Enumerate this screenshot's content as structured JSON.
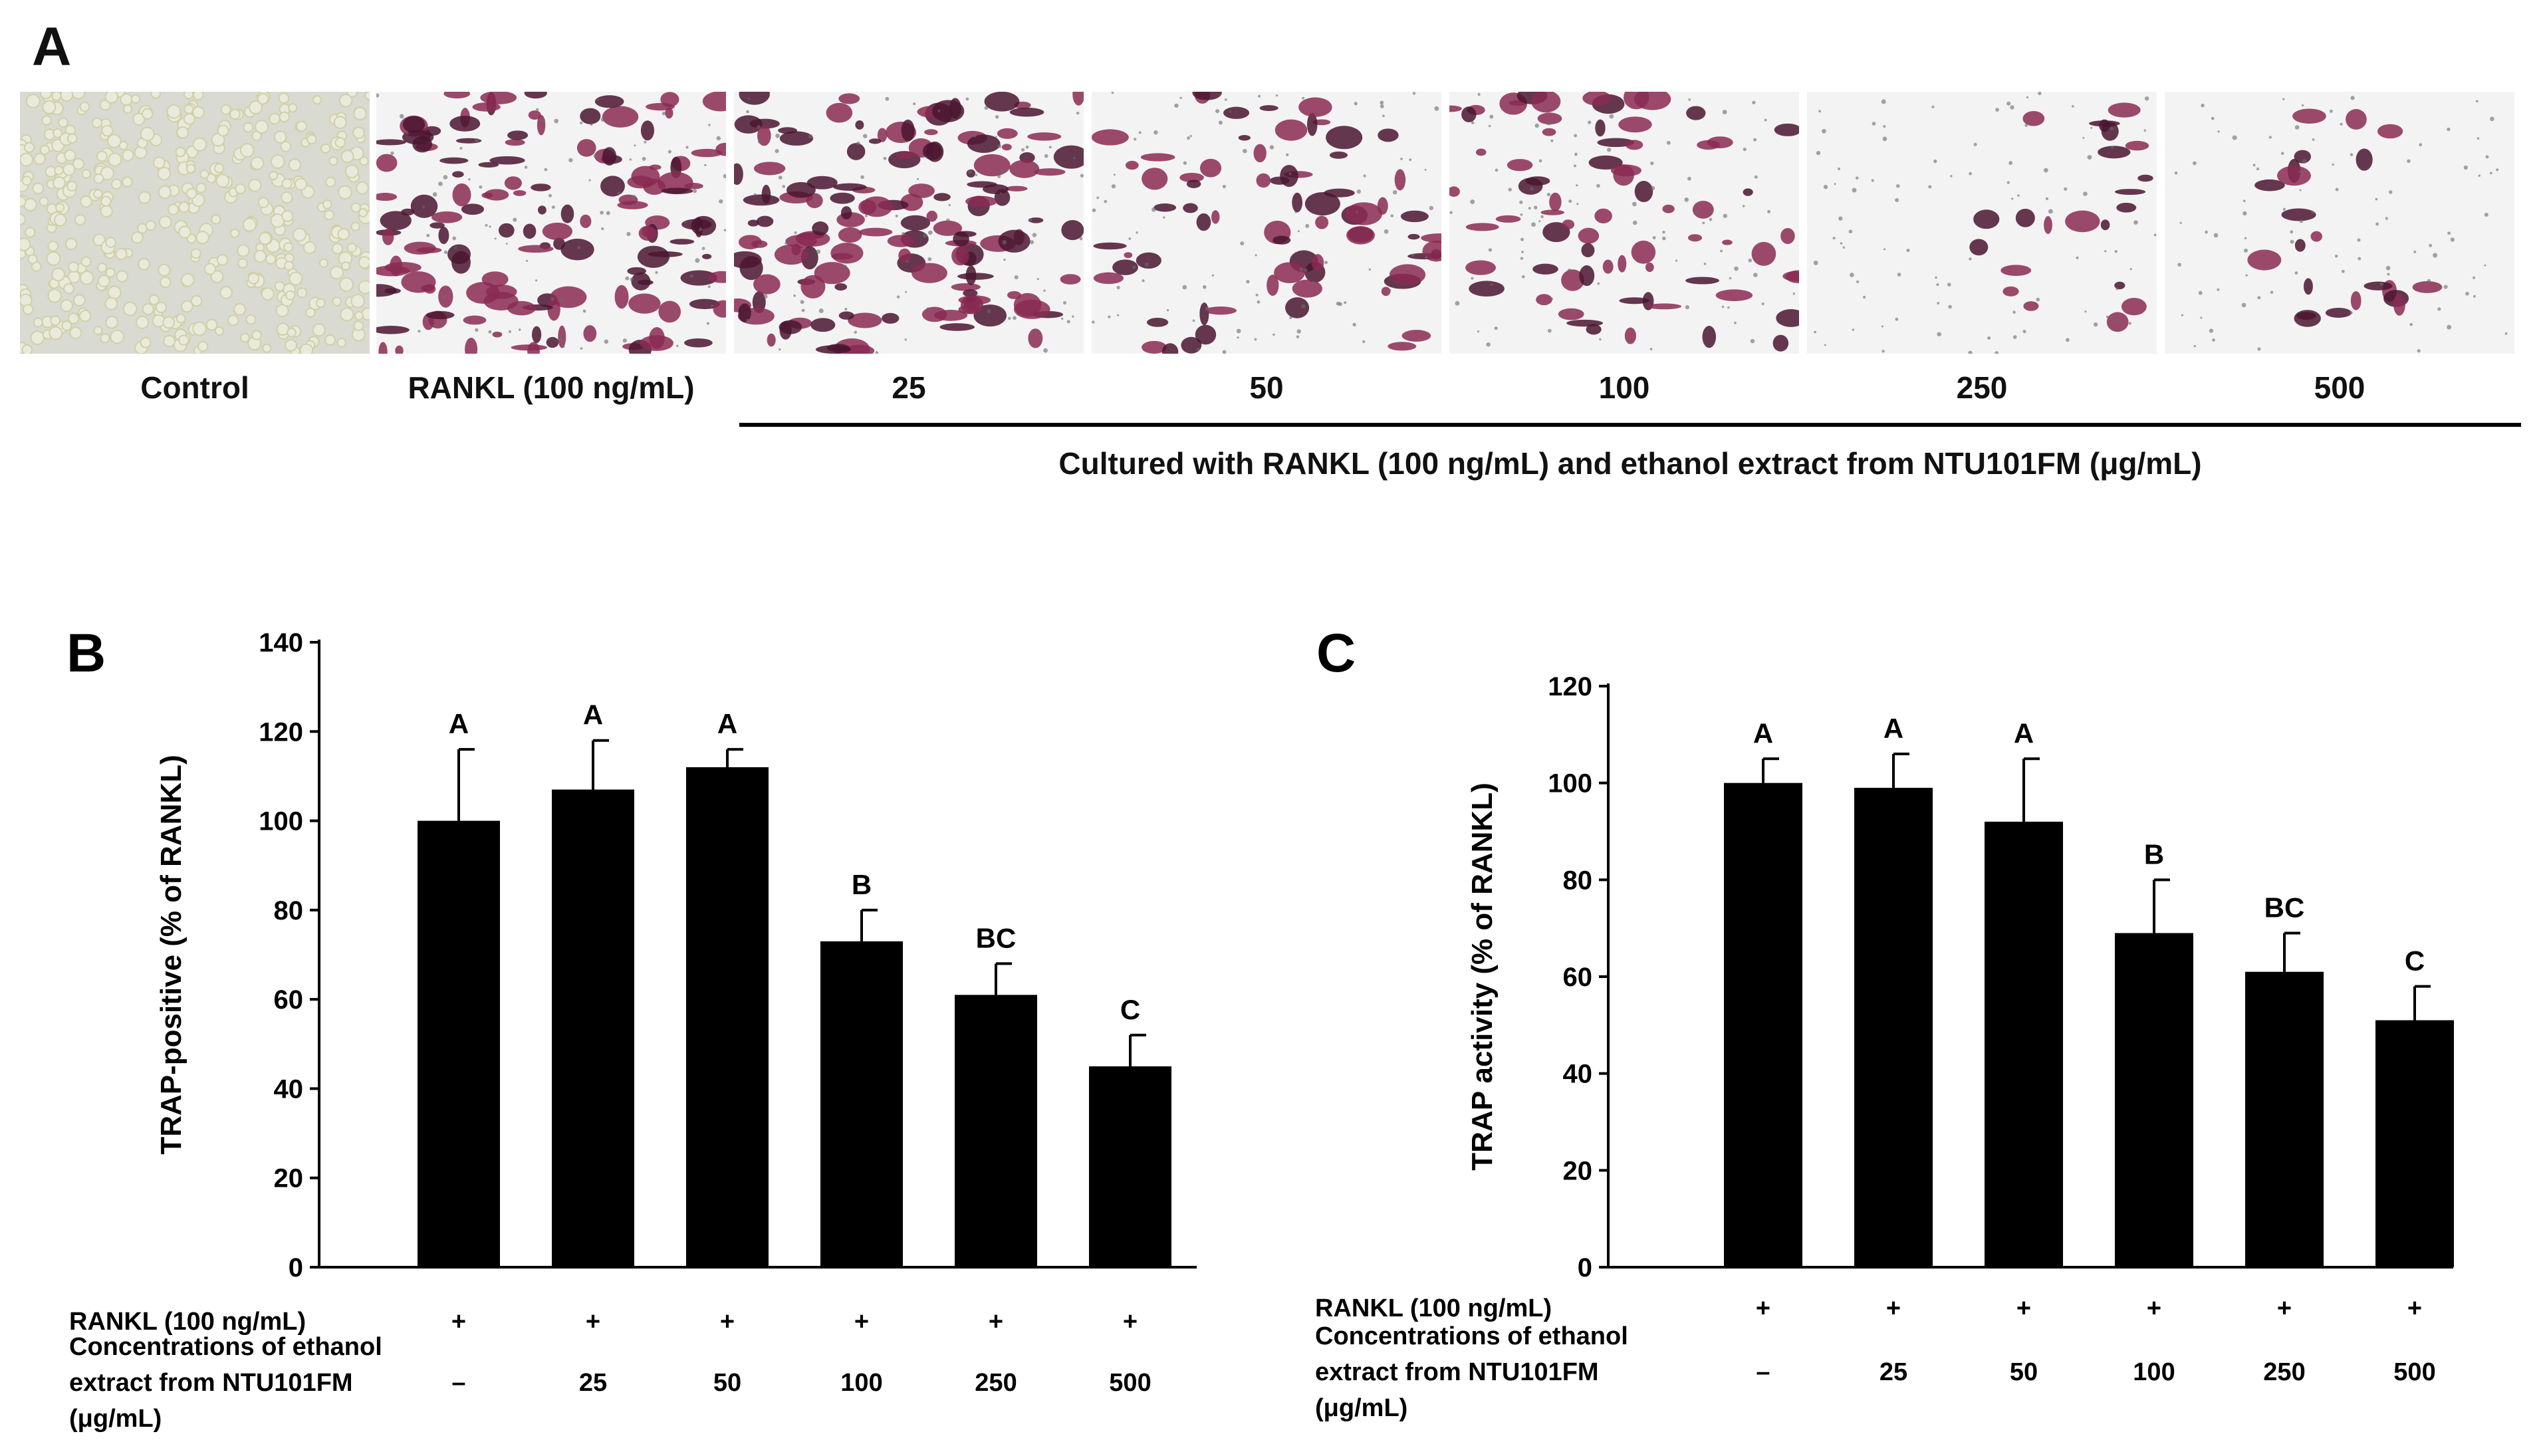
{
  "panel_a": {
    "letter": "A",
    "images": [
      {
        "label": "Control",
        "style": "control"
      },
      {
        "label": "RANKL (100 ng/mL)",
        "style": "dense"
      },
      {
        "label": "25",
        "style": "dense"
      },
      {
        "label": "50",
        "style": "medium"
      },
      {
        "label": "100",
        "style": "medium"
      },
      {
        "label": "250",
        "style": "sparse"
      },
      {
        "label": "500",
        "style": "sparse"
      }
    ],
    "group_caption": "Cultured with RANKL (100 ng/mL) and ethanol extract from NTU101FM (μg/mL)",
    "colors": {
      "stain": "#8a2a52",
      "stain_dark": "#4a1530",
      "control_cell": "#cfd1a6",
      "bg": "#f4f3f3"
    }
  },
  "row_labels": {
    "rankl": "RANKL (100 ng/mL)",
    "conc_line1": "Concentrations of ethanol",
    "conc_line2": "extract from NTU101FM",
    "conc_line3": "(μg/mL)",
    "rankl_marks": [
      "+",
      "+",
      "+",
      "+",
      "+",
      "+"
    ],
    "concentrations": [
      "–",
      "25",
      "50",
      "100",
      "250",
      "500"
    ]
  },
  "chart_data": [
    {
      "panel": "B",
      "type": "bar",
      "categories": [
        "–",
        "25",
        "50",
        "100",
        "250",
        "500"
      ],
      "values": [
        100,
        107,
        112,
        73,
        61,
        45
      ],
      "errors": [
        16,
        11,
        4,
        7,
        7,
        7
      ],
      "significance": [
        "A",
        "A",
        "A",
        "B",
        "BC",
        "C"
      ],
      "ylabel": "TRAP-positive (% of RANKL)",
      "ylim": [
        0,
        140
      ],
      "yticks": [
        0,
        20,
        40,
        60,
        80,
        100,
        120,
        140
      ],
      "bar_color": "#000000",
      "grid": false
    },
    {
      "panel": "C",
      "type": "bar",
      "categories": [
        "–",
        "25",
        "50",
        "100",
        "250",
        "500"
      ],
      "values": [
        100,
        99,
        92,
        69,
        61,
        51
      ],
      "errors": [
        5,
        7,
        13,
        11,
        8,
        7
      ],
      "significance": [
        "A",
        "A",
        "A",
        "B",
        "BC",
        "C"
      ],
      "ylabel": "TRAP activity (% of RANKL)",
      "ylim": [
        0,
        120
      ],
      "yticks": [
        0,
        20,
        40,
        60,
        80,
        100,
        120
      ],
      "bar_color": "#000000",
      "grid": false
    }
  ]
}
